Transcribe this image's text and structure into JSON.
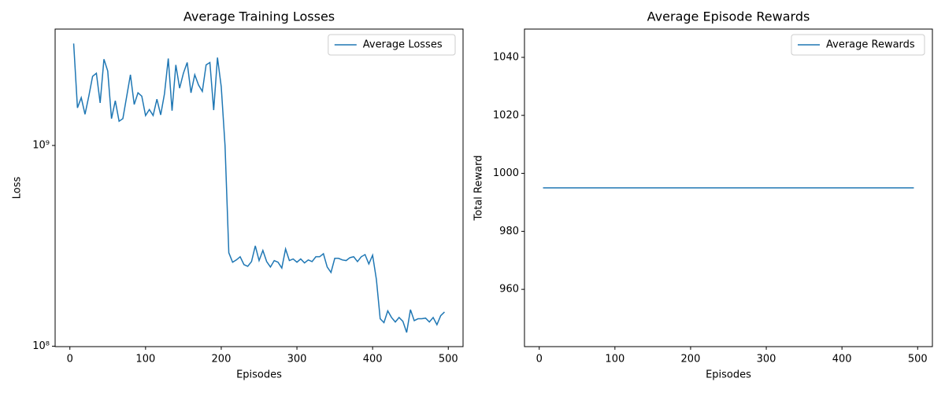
{
  "chart_data": [
    {
      "type": "line",
      "title": "Average Training Losses",
      "xlabel": "Episodes",
      "ylabel": "Loss",
      "x": [
        5,
        10,
        15,
        20,
        25,
        30,
        35,
        40,
        45,
        50,
        55,
        60,
        65,
        70,
        75,
        80,
        85,
        90,
        95,
        100,
        105,
        110,
        115,
        120,
        125,
        130,
        135,
        140,
        145,
        150,
        155,
        160,
        165,
        170,
        175,
        180,
        185,
        190,
        195,
        200,
        205,
        210,
        215,
        220,
        225,
        230,
        235,
        240,
        245,
        250,
        255,
        260,
        265,
        270,
        275,
        280,
        285,
        290,
        295,
        300,
        305,
        310,
        315,
        320,
        325,
        330,
        335,
        340,
        345,
        350,
        355,
        360,
        365,
        370,
        375,
        380,
        385,
        390,
        395,
        400,
        405,
        410,
        415,
        420,
        425,
        430,
        435,
        440,
        445,
        450,
        455,
        460,
        465,
        470,
        475,
        480,
        485,
        490,
        495
      ],
      "series": [
        {
          "name": "Average Losses",
          "color": "#1f77b4",
          "values": [
            3220000000,
            1540000000,
            1730000000,
            1430000000,
            1760000000,
            2210000000,
            2290000000,
            1630000000,
            2690000000,
            2350000000,
            1360000000,
            1670000000,
            1320000000,
            1360000000,
            1750000000,
            2250000000,
            1600000000,
            1830000000,
            1760000000,
            1410000000,
            1510000000,
            1410000000,
            1700000000,
            1420000000,
            1810000000,
            2710000000,
            1490000000,
            2520000000,
            1930000000,
            2290000000,
            2590000000,
            1830000000,
            2250000000,
            2000000000,
            1860000000,
            2520000000,
            2590000000,
            1500000000,
            2740000000,
            1960000000,
            1000000000,
            292000000,
            262000000,
            269000000,
            279000000,
            255000000,
            250000000,
            264000000,
            316000000,
            267000000,
            300000000,
            264000000,
            248000000,
            267000000,
            262000000,
            245000000,
            305000000,
            267000000,
            272000000,
            262000000,
            272000000,
            260000000,
            269000000,
            264000000,
            279000000,
            279000000,
            289000000,
            248000000,
            233000000,
            274000000,
            274000000,
            269000000,
            267000000,
            276000000,
            279000000,
            264000000,
            279000000,
            286000000,
            257000000,
            284000000,
            215000000,
            137000000,
            131000000,
            150000000,
            139000000,
            132000000,
            139000000,
            133000000,
            117000000,
            152000000,
            134000000,
            137000000,
            137000000,
            138000000,
            132000000,
            139000000,
            128000000,
            142000000,
            148000000
          ]
        }
      ],
      "xlim": [
        -19.5,
        519.5
      ],
      "xticks": [
        0,
        100,
        200,
        300,
        400,
        500
      ],
      "ylog": true,
      "ylim": [
        99500000,
        3800000000
      ],
      "yticks": [
        {
          "value": 100000000,
          "label": "10⁸"
        },
        {
          "value": 1000000000,
          "label": "10⁹"
        }
      ],
      "legend": "upper right"
    },
    {
      "type": "line",
      "title": "Average Episode Rewards",
      "xlabel": "Episodes",
      "ylabel": "Total Reward",
      "x": [
        5,
        10,
        15,
        20,
        25,
        30,
        35,
        40,
        45,
        50,
        55,
        60,
        65,
        70,
        75,
        80,
        85,
        90,
        95,
        100,
        105,
        110,
        115,
        120,
        125,
        130,
        135,
        140,
        145,
        150,
        155,
        160,
        165,
        170,
        175,
        180,
        185,
        190,
        195,
        200,
        205,
        210,
        215,
        220,
        225,
        230,
        235,
        240,
        245,
        250,
        255,
        260,
        265,
        270,
        275,
        280,
        285,
        290,
        295,
        300,
        305,
        310,
        315,
        320,
        325,
        330,
        335,
        340,
        345,
        350,
        355,
        360,
        365,
        370,
        375,
        380,
        385,
        390,
        395,
        400,
        405,
        410,
        415,
        420,
        425,
        430,
        435,
        440,
        445,
        450,
        455,
        460,
        465,
        470,
        475,
        480,
        485,
        490,
        495
      ],
      "series": [
        {
          "name": "Average Rewards",
          "color": "#1f77b4",
          "values": [
            995,
            995,
            995,
            995,
            995,
            995,
            995,
            995,
            995,
            995,
            995,
            995,
            995,
            995,
            995,
            995,
            995,
            995,
            995,
            995,
            995,
            995,
            995,
            995,
            995,
            995,
            995,
            995,
            995,
            995,
            995,
            995,
            995,
            995,
            995,
            995,
            995,
            995,
            995,
            995,
            995,
            995,
            995,
            995,
            995,
            995,
            995,
            995,
            995,
            995,
            995,
            995,
            995,
            995,
            995,
            995,
            995,
            995,
            995,
            995,
            995,
            995,
            995,
            995,
            995,
            995,
            995,
            995,
            995,
            995,
            995,
            995,
            995,
            995,
            995,
            995,
            995,
            995,
            995,
            995,
            995,
            995,
            995,
            995,
            995,
            995,
            995,
            995,
            995,
            995,
            995,
            995,
            995,
            995,
            995,
            995,
            995,
            995,
            995
          ]
        }
      ],
      "xlim": [
        -19.5,
        519.5
      ],
      "xticks": [
        0,
        100,
        200,
        300,
        400,
        500
      ],
      "ylog": false,
      "ylim": [
        940.25,
        1049.75
      ],
      "yticks": [
        960,
        980,
        1000,
        1020,
        1040
      ],
      "legend": "upper right"
    }
  ]
}
